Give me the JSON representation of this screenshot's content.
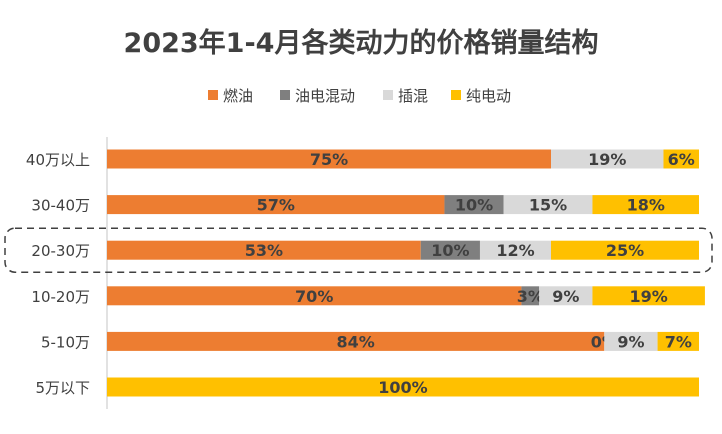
{
  "chart_data": {
    "type": "bar",
    "orientation": "horizontal",
    "stacked": true,
    "percent": true,
    "title": "2023年1-4月各类动力的价格销量结构",
    "categories": [
      "40万以上",
      "30-40万",
      "20-30万",
      "10-20万",
      "5-10万",
      "5万以下"
    ],
    "series": [
      {
        "name": "燃油",
        "color": "#ED7D31",
        "values": [
          75,
          57,
          53,
          70,
          84,
          0
        ],
        "labels": [
          "75%",
          "57%",
          "53%",
          "70%",
          "84%",
          ""
        ]
      },
      {
        "name": "油电混动",
        "color": "#7F7F7F",
        "values": [
          0,
          10,
          10,
          3,
          0,
          0
        ],
        "labels": [
          "",
          "10%",
          "10%",
          "3%",
          "0%",
          ""
        ]
      },
      {
        "name": "插混",
        "color": "#D9D9D9",
        "values": [
          19,
          15,
          12,
          9,
          9,
          0
        ],
        "labels": [
          "19%",
          "15%",
          "12%",
          "9%",
          "9%",
          ""
        ]
      },
      {
        "name": "纯电动",
        "color": "#FFC000",
        "values": [
          6,
          18,
          25,
          19,
          7,
          100
        ],
        "labels": [
          "6%",
          "18%",
          "25%",
          "19%",
          "7%",
          "100%"
        ]
      }
    ],
    "xlim": [
      0,
      100
    ],
    "legend_position": "top",
    "highlight_category": "20-30万",
    "grid": false
  }
}
